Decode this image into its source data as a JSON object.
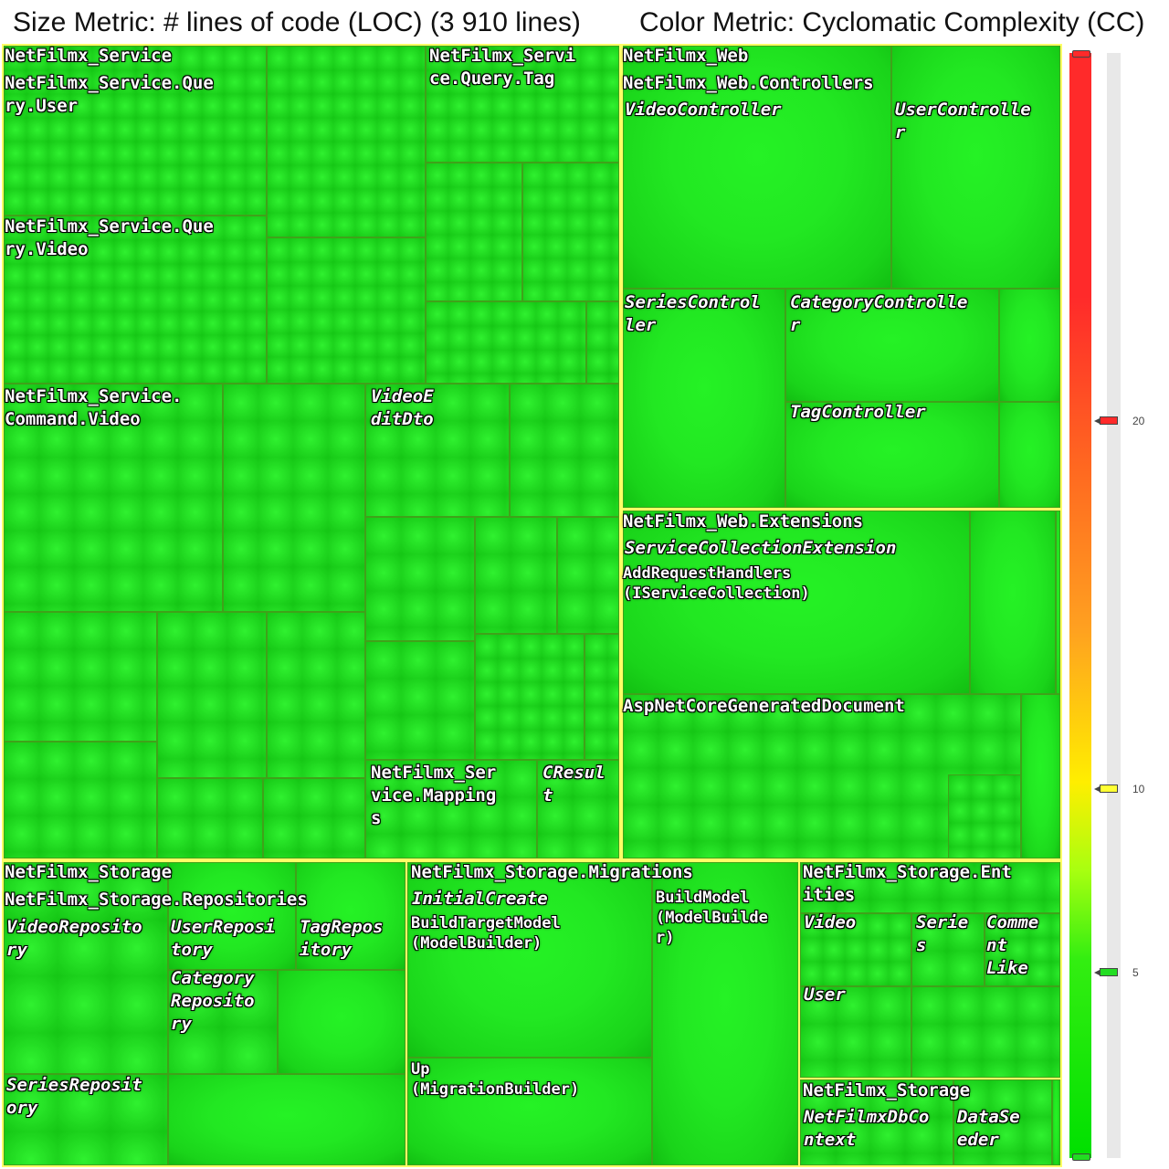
{
  "header": {
    "size_metric": "Size Metric: # lines of code (LOC) (3 910 lines)",
    "color_metric": "Color Metric: Cyclomatic Complexity (CC)"
  },
  "treemap": {
    "service": {
      "label": "NetFilmx_Service",
      "query_user": "NetFilmx_Service.Que\nry.User",
      "query_tag": "NetFilmx_Servi\nce.Query.Tag",
      "query_video": "NetFilmx_Service.Que\nry.Video",
      "command_video": "NetFilmx_Service.\nCommand.Video",
      "video_edit_dto": "VideoE\nditDto",
      "mapping": "NetFilmx_Ser\nvice.Mapping\ns",
      "cresult": "CResul\nt"
    },
    "web": {
      "label": "NetFilmx_Web",
      "controllers": "NetFilmx_Web.Controllers",
      "video_controller": "VideoController",
      "user_controller": "UserControlle\nr",
      "series_controller": "SeriesControl\nler",
      "category_controller": "CategoryControlle\nr",
      "tag_controller": "TagController",
      "extensions": "NetFilmx_Web.Extensions",
      "service_collection_extension": "ServiceCollectionExtension",
      "add_request_handlers": "AddRequestHandlers\n(IServiceCollection)",
      "aspnet_generated": "AspNetCoreGeneratedDocument"
    },
    "storage": {
      "label": "NetFilmx_Storage",
      "repositories": "NetFilmx_Storage.Repositories",
      "video_repository": "VideoReposito\nry",
      "user_repository": "UserReposi\ntory",
      "tag_repository": "TagRepos\nitory",
      "category_repository": "Category\nReposito\nry",
      "series_repository": "SeriesReposit\nory",
      "migrations": "NetFilmx_Storage.Migrations",
      "initial_create": "InitialCreate",
      "build_target_model": "BuildTargetModel\n(ModelBuilder)",
      "build_model": "BuildModel\n(ModelBuilde\nr)",
      "up": "Up\n(MigrationBuilder)",
      "entities": "NetFilmx_Storage.Ent\nities",
      "video": "Video",
      "series": "Serie\ns",
      "comment_like": "Comme\nnt\nLike",
      "user": "User",
      "storage_ns": "NetFilmx_Storage",
      "db_context": "NetFilmxDbCo\nntext",
      "data_seeder": "DataSe\neder"
    }
  },
  "legend": {
    "ticks": [
      "20",
      "10",
      "5"
    ],
    "marker_colors": {
      "20": "#ff2a2a",
      "10": "#ffff33",
      "5": "#22dd22"
    },
    "colors": {
      "high": "#ff2a2a",
      "mid": "#ffee00",
      "low": "#00e000"
    }
  }
}
